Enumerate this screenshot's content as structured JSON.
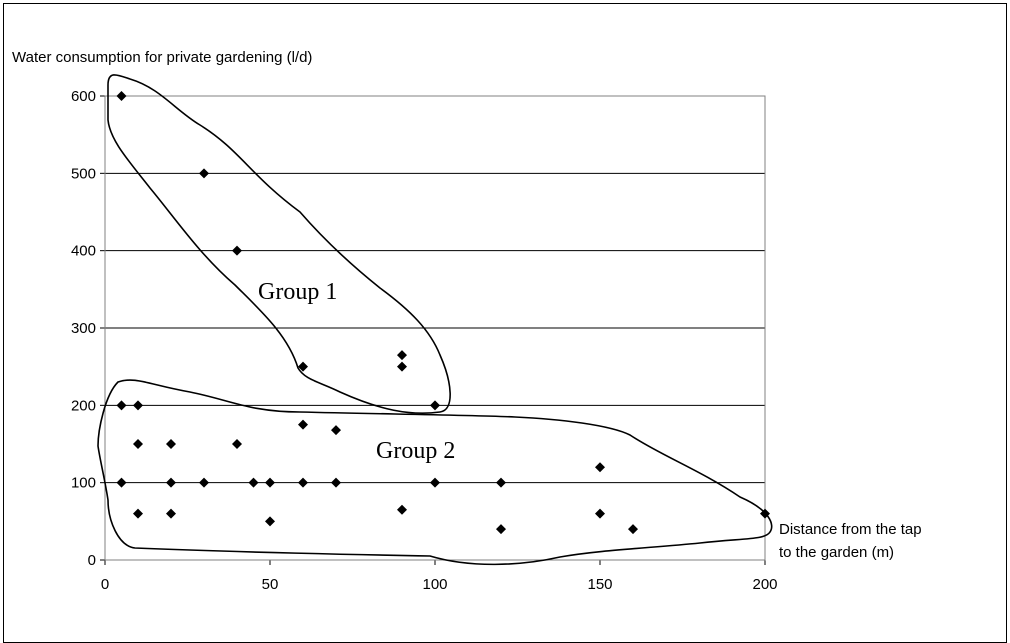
{
  "chart_data": {
    "type": "scatter",
    "title": "",
    "ylabel": "Water consumption for private gardening (l/d)",
    "xlabel_lines": [
      "Distance from the tap",
      "to the garden (m)"
    ],
    "xlim": [
      0,
      200
    ],
    "ylim": [
      0,
      600
    ],
    "x_ticks": [
      0,
      50,
      100,
      150,
      200
    ],
    "y_ticks": [
      0,
      100,
      200,
      300,
      400,
      500,
      600
    ],
    "grid": "horizontal",
    "marker": "diamond",
    "marker_color": "#000000",
    "annotations": [
      "Group 1",
      "Group 2"
    ],
    "points": [
      [
        5,
        600
      ],
      [
        30,
        500
      ],
      [
        40,
        400
      ],
      [
        60,
        250
      ],
      [
        90,
        265
      ],
      [
        90,
        250
      ],
      [
        100,
        200
      ],
      [
        5,
        200
      ],
      [
        10,
        200
      ],
      [
        10,
        150
      ],
      [
        20,
        150
      ],
      [
        40,
        150
      ],
      [
        60,
        175
      ],
      [
        70,
        168
      ],
      [
        5,
        100
      ],
      [
        20,
        100
      ],
      [
        30,
        100
      ],
      [
        45,
        100
      ],
      [
        50,
        100
      ],
      [
        60,
        100
      ],
      [
        70,
        100
      ],
      [
        100,
        100
      ],
      [
        120,
        100
      ],
      [
        150,
        120
      ],
      [
        10,
        60
      ],
      [
        20,
        60
      ],
      [
        50,
        50
      ],
      [
        90,
        65
      ],
      [
        120,
        40
      ],
      [
        150,
        60
      ],
      [
        160,
        40
      ],
      [
        200,
        60
      ]
    ]
  }
}
